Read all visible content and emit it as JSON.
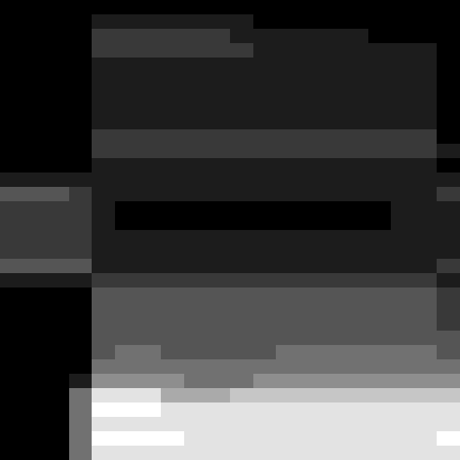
{
  "chart_data": {
    "type": "heatmap",
    "tick_labels": false,
    "zlim": [
      0,
      9
    ],
    "cells": [
      [
        0,
        0,
        0,
        0,
        0,
        0,
        0,
        0,
        0,
        0,
        0,
        0,
        0,
        0,
        0,
        0,
        0,
        0,
        0,
        0
      ],
      [
        0,
        0,
        0,
        0,
        1,
        1,
        1,
        1,
        1,
        1,
        1,
        0,
        0,
        0,
        0,
        0,
        0,
        0,
        0,
        0
      ],
      [
        0,
        0,
        0,
        0,
        2,
        2,
        2,
        2,
        2,
        2,
        1,
        1,
        1,
        1,
        1,
        1,
        0,
        0,
        0,
        0
      ],
      [
        0,
        0,
        0,
        0,
        2,
        2,
        2,
        2,
        2,
        2,
        2,
        1,
        1,
        1,
        1,
        1,
        1,
        1,
        1,
        0
      ],
      [
        0,
        0,
        0,
        0,
        1,
        1,
        1,
        1,
        1,
        1,
        1,
        1,
        1,
        1,
        1,
        1,
        1,
        1,
        1,
        0
      ],
      [
        0,
        0,
        0,
        0,
        1,
        1,
        1,
        1,
        1,
        1,
        1,
        1,
        1,
        1,
        1,
        1,
        1,
        1,
        1,
        0
      ],
      [
        0,
        0,
        0,
        0,
        1,
        1,
        1,
        1,
        1,
        1,
        1,
        1,
        1,
        1,
        1,
        1,
        1,
        1,
        1,
        0
      ],
      [
        0,
        0,
        0,
        0,
        1,
        1,
        1,
        1,
        1,
        1,
        1,
        1,
        1,
        1,
        1,
        1,
        1,
        1,
        1,
        0
      ],
      [
        0,
        0,
        0,
        0,
        1,
        1,
        1,
        1,
        1,
        1,
        1,
        1,
        1,
        1,
        1,
        1,
        1,
        1,
        1,
        0
      ],
      [
        0,
        0,
        0,
        0,
        2,
        2,
        2,
        2,
        2,
        2,
        2,
        2,
        2,
        2,
        2,
        2,
        2,
        2,
        2,
        0
      ],
      [
        0,
        0,
        0,
        0,
        2,
        2,
        2,
        2,
        2,
        2,
        2,
        2,
        2,
        2,
        2,
        2,
        2,
        2,
        2,
        1
      ],
      [
        0,
        0,
        0,
        0,
        1,
        1,
        1,
        1,
        1,
        1,
        1,
        1,
        1,
        1,
        1,
        1,
        1,
        1,
        1,
        0
      ],
      [
        1,
        1,
        1,
        1,
        1,
        1,
        1,
        1,
        1,
        1,
        1,
        1,
        1,
        1,
        1,
        1,
        1,
        1,
        1,
        1
      ],
      [
        3,
        3,
        3,
        2,
        1,
        1,
        1,
        1,
        1,
        1,
        1,
        1,
        1,
        1,
        1,
        1,
        1,
        1,
        1,
        2
      ],
      [
        2,
        2,
        2,
        2,
        1,
        0,
        0,
        0,
        0,
        0,
        0,
        0,
        0,
        0,
        0,
        0,
        0,
        1,
        1,
        1
      ],
      [
        2,
        2,
        2,
        2,
        1,
        0,
        0,
        0,
        0,
        0,
        0,
        0,
        0,
        0,
        0,
        0,
        0,
        1,
        1,
        1
      ],
      [
        2,
        2,
        2,
        2,
        1,
        1,
        1,
        1,
        1,
        1,
        1,
        1,
        1,
        1,
        1,
        1,
        1,
        1,
        1,
        1
      ],
      [
        2,
        2,
        2,
        2,
        1,
        1,
        1,
        1,
        1,
        1,
        1,
        1,
        1,
        1,
        1,
        1,
        1,
        1,
        1,
        1
      ],
      [
        3,
        3,
        3,
        3,
        1,
        1,
        1,
        1,
        1,
        1,
        1,
        1,
        1,
        1,
        1,
        1,
        1,
        1,
        1,
        2
      ],
      [
        1,
        1,
        1,
        1,
        2,
        2,
        2,
        2,
        2,
        2,
        2,
        2,
        2,
        2,
        2,
        2,
        2,
        2,
        2,
        1
      ],
      [
        0,
        0,
        0,
        0,
        3,
        3,
        3,
        3,
        3,
        3,
        3,
        3,
        3,
        3,
        3,
        3,
        3,
        3,
        3,
        2
      ],
      [
        0,
        0,
        0,
        0,
        3,
        3,
        3,
        3,
        3,
        3,
        3,
        3,
        3,
        3,
        3,
        3,
        3,
        3,
        3,
        2
      ],
      [
        0,
        0,
        0,
        0,
        3,
        3,
        3,
        3,
        3,
        3,
        3,
        3,
        3,
        3,
        3,
        3,
        3,
        3,
        3,
        2
      ],
      [
        0,
        0,
        0,
        0,
        3,
        3,
        3,
        3,
        3,
        3,
        3,
        3,
        3,
        3,
        3,
        3,
        3,
        3,
        3,
        3
      ],
      [
        0,
        0,
        0,
        0,
        3,
        4,
        4,
        3,
        3,
        3,
        3,
        3,
        4,
        4,
        4,
        4,
        4,
        4,
        4,
        3
      ],
      [
        0,
        0,
        0,
        0,
        4,
        4,
        4,
        4,
        4,
        4,
        4,
        4,
        4,
        4,
        4,
        4,
        4,
        4,
        4,
        4
      ],
      [
        0,
        0,
        0,
        1,
        5,
        5,
        5,
        5,
        4,
        4,
        4,
        5,
        5,
        5,
        5,
        5,
        5,
        5,
        5,
        5
      ],
      [
        0,
        0,
        0,
        4,
        8,
        8,
        8,
        6,
        6,
        6,
        7,
        7,
        7,
        7,
        7,
        7,
        7,
        7,
        7,
        7
      ],
      [
        0,
        0,
        0,
        4,
        9,
        9,
        9,
        8,
        8,
        8,
        8,
        8,
        8,
        8,
        8,
        8,
        8,
        8,
        8,
        8
      ],
      [
        0,
        0,
        0,
        4,
        8,
        8,
        8,
        8,
        8,
        8,
        8,
        8,
        8,
        8,
        8,
        8,
        8,
        8,
        8,
        8
      ],
      [
        0,
        0,
        0,
        4,
        9,
        9,
        9,
        9,
        8,
        8,
        8,
        8,
        8,
        8,
        8,
        8,
        8,
        8,
        8,
        9
      ],
      [
        0,
        0,
        0,
        4,
        8,
        8,
        8,
        8,
        8,
        8,
        8,
        8,
        8,
        8,
        8,
        8,
        8,
        8,
        8,
        8
      ]
    ]
  }
}
